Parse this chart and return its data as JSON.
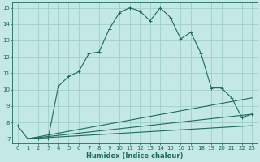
{
  "xlabel": "Humidex (Indice chaleur)",
  "bg_color": "#c4e8e4",
  "grid_color": "#9ecece",
  "line_color": "#1a6b5a",
  "xlim": [
    -0.5,
    23.5
  ],
  "ylim": [
    6.7,
    15.3
  ],
  "xticks": [
    0,
    1,
    2,
    3,
    4,
    5,
    6,
    7,
    8,
    9,
    10,
    11,
    12,
    13,
    14,
    15,
    16,
    17,
    18,
    19,
    20,
    21,
    22,
    23
  ],
  "yticks": [
    7,
    8,
    9,
    10,
    11,
    12,
    13,
    14,
    15
  ],
  "line1_x": [
    0,
    1,
    2,
    3,
    4,
    5,
    6,
    7,
    8,
    9,
    10,
    11,
    12,
    13,
    14,
    15,
    16,
    17,
    18,
    19,
    20,
    21,
    22,
    23
  ],
  "line1_y": [
    7.8,
    7.0,
    7.0,
    7.0,
    10.2,
    10.8,
    11.1,
    12.2,
    12.3,
    13.7,
    14.7,
    15.0,
    14.8,
    14.2,
    15.0,
    14.4,
    13.1,
    13.5,
    12.2,
    10.1,
    10.1,
    9.5,
    8.3,
    8.5
  ],
  "line2_x": [
    1,
    23
  ],
  "line2_y": [
    7.0,
    9.5
  ],
  "line3_x": [
    1,
    23
  ],
  "line3_y": [
    7.0,
    8.5
  ],
  "line4_x": [
    1,
    23
  ],
  "line4_y": [
    7.0,
    7.8
  ]
}
